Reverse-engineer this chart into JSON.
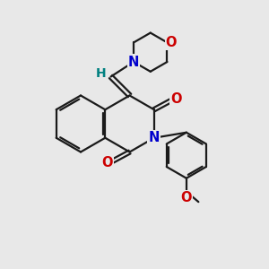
{
  "bg_color": "#e8e8e8",
  "bond_color": "#1a1a1a",
  "bond_width": 1.6,
  "atom_colors": {
    "N": "#0000cc",
    "O": "#cc0000",
    "H": "#008080",
    "C": "#1a1a1a"
  },
  "font_size_atom": 10.5
}
